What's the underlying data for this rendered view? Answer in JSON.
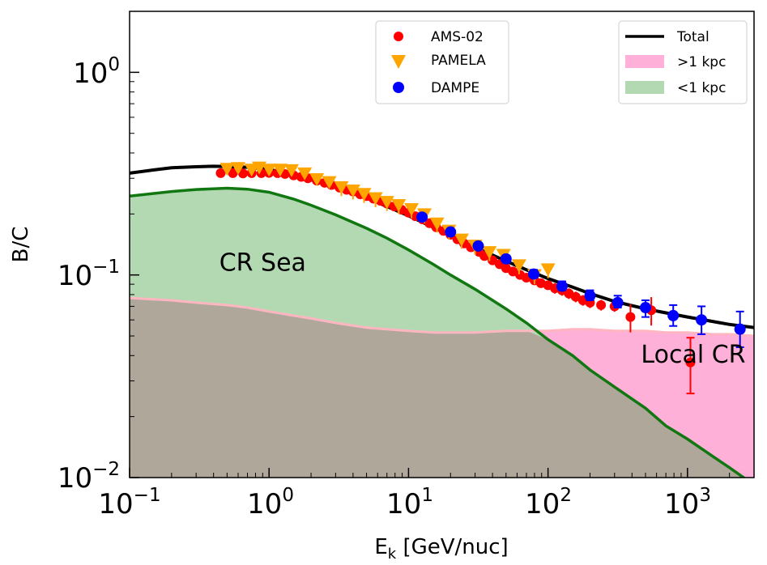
{
  "chart_data": {
    "type": "line",
    "x_scale": "log",
    "y_scale": "log",
    "xlim": [
      0.1,
      3000
    ],
    "ylim": [
      0.01,
      2.0
    ],
    "xlabel": "E_k [GeV/nuc]",
    "xlabel_main": "E",
    "xlabel_sub": "k",
    "xlabel_rest": " [GeV/nuc]",
    "ylabel": "B/C",
    "x_ticks": [
      {
        "base": "10",
        "exp": "−1",
        "value": 0.1
      },
      {
        "base": "10",
        "exp": "0",
        "value": 1
      },
      {
        "base": "10",
        "exp": "1",
        "value": 10
      },
      {
        "base": "10",
        "exp": "2",
        "value": 100
      },
      {
        "base": "10",
        "exp": "3",
        "value": 1000
      }
    ],
    "y_ticks": [
      {
        "base": "10",
        "exp": "−2",
        "value": 0.01
      },
      {
        "base": "10",
        "exp": "−1",
        "value": 0.1
      },
      {
        "base": "10",
        "exp": "0",
        "value": 1
      }
    ],
    "colors": {
      "total": "#000000",
      "gt1kpc_line": "#ffb6c1",
      "gt1kpc_fill": "#ffb0d8",
      "lt1kpc_line": "#117711",
      "lt1kpc_fill": "#b3d9b3",
      "overlap_fill": "#b0a79b",
      "ams": "#ff0000",
      "pamela": "#ffa500",
      "dampe": "#0000ff"
    },
    "legend_left": {
      "position": "top-center",
      "entries": [
        {
          "label": "AMS-02",
          "marker": "circle",
          "color": "#ff0000"
        },
        {
          "label": "PAMELA",
          "marker": "triangle-down",
          "color": "#ffa500"
        },
        {
          "label": "DAMPE",
          "marker": "circle",
          "color": "#0000ff"
        }
      ]
    },
    "legend_right": {
      "position": "top-right",
      "entries": [
        {
          "label": "Total",
          "style": "line",
          "color": "#000000"
        },
        {
          "label": ">1 kpc",
          "style": "patch",
          "color": "#ffb0d8"
        },
        {
          "label": "<1 kpc",
          "style": "patch",
          "color": "#b3d9b3"
        }
      ]
    },
    "annotations": [
      {
        "text": "CR Sea",
        "x": 0.9,
        "y": 0.105
      },
      {
        "text": "Local CR",
        "x": 1100,
        "y": 0.037
      }
    ],
    "series": [
      {
        "name": "Total",
        "kind": "line",
        "x": [
          0.1,
          0.15,
          0.2,
          0.3,
          0.4,
          0.5,
          0.7,
          1.0,
          1.5,
          2,
          3,
          5,
          7,
          10,
          15,
          20,
          30,
          50,
          70,
          100,
          150,
          200,
          300,
          500,
          700,
          1000,
          1500,
          2000,
          3000
        ],
        "y": [
          0.318,
          0.33,
          0.338,
          0.342,
          0.344,
          0.343,
          0.34,
          0.332,
          0.312,
          0.295,
          0.27,
          0.24,
          0.218,
          0.196,
          0.172,
          0.156,
          0.137,
          0.117,
          0.106,
          0.096,
          0.087,
          0.081,
          0.074,
          0.068,
          0.065,
          0.062,
          0.059,
          0.057,
          0.055
        ]
      },
      {
        "name": "<1 kpc",
        "kind": "area",
        "x": [
          0.1,
          0.2,
          0.3,
          0.5,
          0.7,
          1.0,
          1.5,
          2,
          3,
          5,
          7,
          10,
          15,
          20,
          30,
          50,
          70,
          100,
          150,
          200,
          300,
          500,
          700,
          1000,
          1500,
          2000,
          3000
        ],
        "y": [
          0.245,
          0.258,
          0.264,
          0.268,
          0.265,
          0.256,
          0.237,
          0.221,
          0.198,
          0.17,
          0.152,
          0.133,
          0.113,
          0.1,
          0.085,
          0.068,
          0.058,
          0.048,
          0.04,
          0.034,
          0.028,
          0.022,
          0.018,
          0.0155,
          0.0128,
          0.0112,
          0.0092
        ]
      },
      {
        "name": ">1 kpc",
        "kind": "area",
        "x": [
          0.1,
          0.2,
          0.3,
          0.5,
          0.7,
          1.0,
          1.5,
          2,
          3,
          5,
          7,
          10,
          15,
          20,
          30,
          50,
          70,
          100,
          150,
          200,
          300,
          500,
          700,
          1000,
          1500,
          2000,
          3000
        ],
        "y": [
          0.077,
          0.075,
          0.073,
          0.071,
          0.069,
          0.066,
          0.063,
          0.061,
          0.058,
          0.055,
          0.054,
          0.053,
          0.052,
          0.052,
          0.052,
          0.053,
          0.053,
          0.053,
          0.054,
          0.054,
          0.053,
          0.053,
          0.052,
          0.052,
          0.051,
          0.051,
          0.05
        ]
      },
      {
        "name": "AMS-02",
        "kind": "scatter",
        "marker": "circle",
        "points": [
          {
            "x": 0.45,
            "y": 0.318
          },
          {
            "x": 0.55,
            "y": 0.318
          },
          {
            "x": 0.65,
            "y": 0.317
          },
          {
            "x": 0.75,
            "y": 0.318
          },
          {
            "x": 0.88,
            "y": 0.318
          },
          {
            "x": 1.0,
            "y": 0.319
          },
          {
            "x": 1.15,
            "y": 0.318
          },
          {
            "x": 1.3,
            "y": 0.315
          },
          {
            "x": 1.5,
            "y": 0.31
          },
          {
            "x": 1.7,
            "y": 0.305
          },
          {
            "x": 1.9,
            "y": 0.3
          },
          {
            "x": 2.2,
            "y": 0.292
          },
          {
            "x": 2.5,
            "y": 0.285
          },
          {
            "x": 2.8,
            "y": 0.278
          },
          {
            "x": 3.2,
            "y": 0.27
          },
          {
            "x": 3.6,
            "y": 0.263
          },
          {
            "x": 4.0,
            "y": 0.258
          },
          {
            "x": 4.5,
            "y": 0.25
          },
          {
            "x": 5.0,
            "y": 0.245
          },
          {
            "x": 5.6,
            "y": 0.238
          },
          {
            "x": 6.3,
            "y": 0.232
          },
          {
            "x": 7.0,
            "y": 0.225
          },
          {
            "x": 7.9,
            "y": 0.218
          },
          {
            "x": 8.9,
            "y": 0.21
          },
          {
            "x": 10,
            "y": 0.203
          },
          {
            "x": 11.2,
            "y": 0.195
          },
          {
            "x": 12.6,
            "y": 0.188
          },
          {
            "x": 14.1,
            "y": 0.18
          },
          {
            "x": 15.8,
            "y": 0.172
          },
          {
            "x": 17.8,
            "y": 0.165
          },
          {
            "x": 20,
            "y": 0.158
          },
          {
            "x": 22.4,
            "y": 0.15
          },
          {
            "x": 25,
            "y": 0.143
          },
          {
            "x": 28,
            "y": 0.137
          },
          {
            "x": 32,
            "y": 0.13
          },
          {
            "x": 35,
            "y": 0.124
          },
          {
            "x": 40,
            "y": 0.118
          },
          {
            "x": 45,
            "y": 0.113
          },
          {
            "x": 50,
            "y": 0.108
          },
          {
            "x": 56,
            "y": 0.104
          },
          {
            "x": 63,
            "y": 0.1
          },
          {
            "x": 70,
            "y": 0.097
          },
          {
            "x": 80,
            "y": 0.094
          },
          {
            "x": 89,
            "y": 0.091
          },
          {
            "x": 100,
            "y": 0.089
          },
          {
            "x": 112,
            "y": 0.086
          },
          {
            "x": 126,
            "y": 0.084
          },
          {
            "x": 141,
            "y": 0.081
          },
          {
            "x": 158,
            "y": 0.078
          },
          {
            "x": 178,
            "y": 0.075
          },
          {
            "x": 200,
            "y": 0.073
          },
          {
            "x": 240,
            "y": 0.071
          },
          {
            "x": 300,
            "y": 0.07
          },
          {
            "x": 390,
            "y": 0.062
          },
          {
            "x": 550,
            "y": 0.067
          },
          {
            "x": 1050,
            "y": 0.037
          }
        ]
      },
      {
        "name": "PAMELA",
        "kind": "scatter",
        "marker": "triangle-down",
        "points": [
          {
            "x": 0.5,
            "y": 0.335
          },
          {
            "x": 0.6,
            "y": 0.338
          },
          {
            "x": 0.75,
            "y": 0.332
          },
          {
            "x": 0.85,
            "y": 0.34
          },
          {
            "x": 1.0,
            "y": 0.332
          },
          {
            "x": 1.2,
            "y": 0.332
          },
          {
            "x": 1.45,
            "y": 0.33
          },
          {
            "x": 1.8,
            "y": 0.318
          },
          {
            "x": 2.2,
            "y": 0.298
          },
          {
            "x": 2.7,
            "y": 0.288
          },
          {
            "x": 3.3,
            "y": 0.272
          },
          {
            "x": 4.0,
            "y": 0.262
          },
          {
            "x": 4.8,
            "y": 0.252
          },
          {
            "x": 5.8,
            "y": 0.24
          },
          {
            "x": 7.0,
            "y": 0.23
          },
          {
            "x": 8.5,
            "y": 0.222
          },
          {
            "x": 10.5,
            "y": 0.212
          },
          {
            "x": 13,
            "y": 0.2
          },
          {
            "x": 16,
            "y": 0.18
          },
          {
            "x": 19.5,
            "y": 0.166
          },
          {
            "x": 24,
            "y": 0.15
          },
          {
            "x": 30,
            "y": 0.14
          },
          {
            "x": 38,
            "y": 0.13
          },
          {
            "x": 48,
            "y": 0.126
          },
          {
            "x": 62,
            "y": 0.112
          },
          {
            "x": 80,
            "y": 0.1
          },
          {
            "x": 100,
            "y": 0.107
          }
        ]
      },
      {
        "name": "DAMPE",
        "kind": "scatter",
        "marker": "circle",
        "points": [
          {
            "x": 12.5,
            "y": 0.193,
            "lo": 0.188,
            "hi": 0.198
          },
          {
            "x": 20,
            "y": 0.163,
            "lo": 0.158,
            "hi": 0.168
          },
          {
            "x": 31.6,
            "y": 0.139,
            "lo": 0.134,
            "hi": 0.144
          },
          {
            "x": 50,
            "y": 0.12,
            "lo": 0.115,
            "hi": 0.125
          },
          {
            "x": 79,
            "y": 0.101,
            "lo": 0.097,
            "hi": 0.106
          },
          {
            "x": 126,
            "y": 0.088,
            "lo": 0.084,
            "hi": 0.093
          },
          {
            "x": 200,
            "y": 0.079,
            "lo": 0.075,
            "hi": 0.084
          },
          {
            "x": 316,
            "y": 0.073,
            "lo": 0.069,
            "hi": 0.079
          },
          {
            "x": 500,
            "y": 0.069,
            "lo": 0.062,
            "hi": 0.075
          },
          {
            "x": 790,
            "y": 0.063,
            "lo": 0.056,
            "hi": 0.071
          },
          {
            "x": 1260,
            "y": 0.06,
            "lo": 0.051,
            "hi": 0.07
          },
          {
            "x": 2380,
            "y": 0.054,
            "lo": 0.044,
            "hi": 0.066
          }
        ]
      }
    ]
  }
}
